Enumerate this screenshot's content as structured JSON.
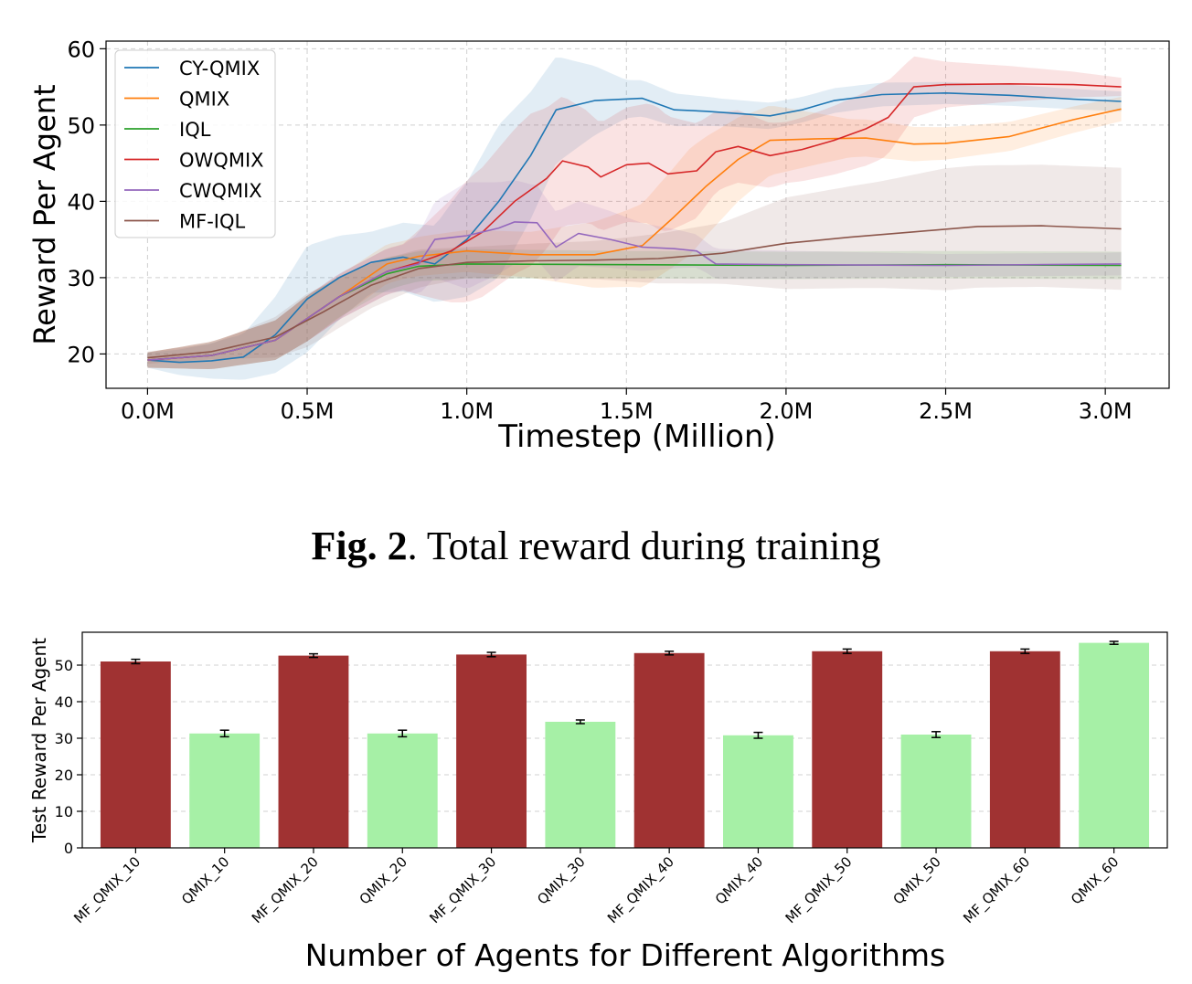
{
  "caption": {
    "label": "Fig. 2",
    "sep": ".",
    "text": " Total reward during training"
  },
  "chart_data": [
    {
      "type": "line",
      "xlabel": "Timestep (Million)",
      "ylabel": "Reward Per Agent",
      "xlim": [
        -0.13,
        3.2
      ],
      "ylim": [
        15.5,
        61
      ],
      "xticks": [
        0,
        0.5,
        1.0,
        1.5,
        2.0,
        2.5,
        3.0
      ],
      "xtick_labels": [
        "0.0M",
        "0.5M",
        "1.0M",
        "1.5M",
        "2.0M",
        "2.5M",
        "3.0M"
      ],
      "yticks": [
        20,
        30,
        40,
        50,
        60
      ],
      "ytick_labels": [
        "20",
        "30",
        "40",
        "50",
        "60"
      ],
      "grid": true,
      "legend_position": "top-left",
      "series": [
        {
          "name": "CY-QMIX",
          "color": "#1f77b4",
          "points": [
            [
              0,
              19.2
            ],
            [
              0.1,
              18.9
            ],
            [
              0.2,
              19.1
            ],
            [
              0.3,
              19.6
            ],
            [
              0.4,
              22.5
            ],
            [
              0.5,
              27.2
            ],
            [
              0.6,
              30.0
            ],
            [
              0.7,
              32.0
            ],
            [
              0.8,
              32.7
            ],
            [
              0.9,
              31.8
            ],
            [
              1.0,
              35.0
            ],
            [
              1.1,
              40.0
            ],
            [
              1.2,
              46.0
            ],
            [
              1.28,
              52.0
            ],
            [
              1.4,
              53.2
            ],
            [
              1.55,
              53.5
            ],
            [
              1.65,
              52.0
            ],
            [
              1.75,
              51.8
            ],
            [
              1.85,
              51.5
            ],
            [
              1.95,
              51.2
            ],
            [
              2.05,
              52.0
            ],
            [
              2.15,
              53.2
            ],
            [
              2.3,
              54.0
            ],
            [
              2.5,
              54.2
            ],
            [
              2.7,
              53.9
            ],
            [
              2.9,
              53.4
            ],
            [
              3.05,
              53.1
            ]
          ],
          "band": [
            [
              0,
              1.0
            ],
            [
              0.3,
              3.0
            ],
            [
              0.5,
              7.0
            ],
            [
              0.7,
              4.0
            ],
            [
              0.9,
              5.0
            ],
            [
              1.1,
              10.0
            ],
            [
              1.28,
              7.0
            ],
            [
              1.5,
              2.5
            ],
            [
              1.8,
              1.8
            ],
            [
              2.2,
              1.6
            ],
            [
              2.6,
              1.4
            ],
            [
              3.05,
              1.3
            ]
          ]
        },
        {
          "name": "QMIX",
          "color": "#ff7f0e",
          "points": [
            [
              0,
              19.2
            ],
            [
              0.2,
              19.8
            ],
            [
              0.4,
              21.8
            ],
            [
              0.6,
              27.5
            ],
            [
              0.75,
              31.8
            ],
            [
              0.85,
              32.8
            ],
            [
              1.0,
              33.5
            ],
            [
              1.2,
              33.0
            ],
            [
              1.4,
              33.0
            ],
            [
              1.55,
              34.2
            ],
            [
              1.65,
              38.0
            ],
            [
              1.75,
              42.0
            ],
            [
              1.85,
              45.5
            ],
            [
              1.95,
              48.0
            ],
            [
              2.1,
              48.2
            ],
            [
              2.25,
              48.3
            ],
            [
              2.4,
              47.5
            ],
            [
              2.5,
              47.6
            ],
            [
              2.7,
              48.5
            ],
            [
              2.9,
              50.7
            ],
            [
              3.05,
              52.1
            ]
          ],
          "band": [
            [
              0,
              1.0
            ],
            [
              0.5,
              3.0
            ],
            [
              0.8,
              2.5
            ],
            [
              1.2,
              3.0
            ],
            [
              1.5,
              5.0
            ],
            [
              1.7,
              7.0
            ],
            [
              1.9,
              5.0
            ],
            [
              2.2,
              2.5
            ],
            [
              2.6,
              2.0
            ],
            [
              3.05,
              1.6
            ]
          ]
        },
        {
          "name": "IQL",
          "color": "#2ca02c",
          "points": [
            [
              0,
              19.2
            ],
            [
              0.2,
              19.8
            ],
            [
              0.4,
              21.8
            ],
            [
              0.6,
              27.5
            ],
            [
              0.75,
              30.5
            ],
            [
              0.85,
              31.5
            ],
            [
              1.0,
              31.8
            ],
            [
              1.5,
              31.7
            ],
            [
              2.0,
              31.6
            ],
            [
              2.5,
              31.7
            ],
            [
              3.05,
              31.6
            ]
          ],
          "band": [
            [
              0,
              1.0
            ],
            [
              0.5,
              3.0
            ],
            [
              0.8,
              2.0
            ],
            [
              1.5,
              1.8
            ],
            [
              2.5,
              1.8
            ],
            [
              3.05,
              1.8
            ]
          ]
        },
        {
          "name": "OWQMIX",
          "color": "#d62728",
          "points": [
            [
              0,
              19.2
            ],
            [
              0.2,
              19.8
            ],
            [
              0.4,
              21.8
            ],
            [
              0.6,
              27.5
            ],
            [
              0.75,
              30.8
            ],
            [
              0.85,
              32.0
            ],
            [
              0.95,
              33.5
            ],
            [
              1.05,
              36.0
            ],
            [
              1.15,
              40.0
            ],
            [
              1.25,
              43.0
            ],
            [
              1.3,
              45.3
            ],
            [
              1.38,
              44.5
            ],
            [
              1.42,
              43.2
            ],
            [
              1.5,
              44.8
            ],
            [
              1.57,
              45.0
            ],
            [
              1.63,
              43.6
            ],
            [
              1.72,
              44.0
            ],
            [
              1.78,
              46.5
            ],
            [
              1.85,
              47.2
            ],
            [
              1.95,
              46.0
            ],
            [
              2.05,
              46.8
            ],
            [
              2.15,
              48.0
            ],
            [
              2.25,
              49.5
            ],
            [
              2.32,
              51.0
            ],
            [
              2.4,
              55.0
            ],
            [
              2.5,
              55.3
            ],
            [
              2.7,
              55.4
            ],
            [
              2.9,
              55.3
            ],
            [
              3.05,
              55.0
            ]
          ],
          "band": [
            [
              0,
              1.0
            ],
            [
              0.5,
              3.0
            ],
            [
              0.8,
              3.0
            ],
            [
              1.0,
              8.0
            ],
            [
              1.2,
              10.0
            ],
            [
              1.4,
              7.0
            ],
            [
              1.6,
              8.0
            ],
            [
              1.8,
              5.0
            ],
            [
              2.0,
              4.0
            ],
            [
              2.3,
              5.0
            ],
            [
              2.5,
              3.0
            ],
            [
              3.05,
              1.2
            ]
          ]
        },
        {
          "name": "CWQMIX",
          "color": "#9467bd",
          "points": [
            [
              0,
              19.2
            ],
            [
              0.2,
              19.8
            ],
            [
              0.4,
              21.8
            ],
            [
              0.6,
              27.5
            ],
            [
              0.75,
              30.8
            ],
            [
              0.85,
              31.8
            ],
            [
              0.9,
              35.0
            ],
            [
              1.0,
              35.5
            ],
            [
              1.1,
              36.5
            ],
            [
              1.15,
              37.3
            ],
            [
              1.22,
              37.2
            ],
            [
              1.28,
              34.0
            ],
            [
              1.35,
              35.8
            ],
            [
              1.45,
              35.0
            ],
            [
              1.55,
              34.0
            ],
            [
              1.65,
              33.8
            ],
            [
              1.72,
              33.5
            ],
            [
              1.78,
              31.8
            ],
            [
              2.0,
              31.7
            ],
            [
              2.5,
              31.6
            ],
            [
              3.05,
              31.8
            ]
          ],
          "band": [
            [
              0,
              1.0
            ],
            [
              0.5,
              3.0
            ],
            [
              0.8,
              3.0
            ],
            [
              1.0,
              7.0
            ],
            [
              1.2,
              5.0
            ],
            [
              1.4,
              4.0
            ],
            [
              1.75,
              2.0
            ],
            [
              2.5,
              1.5
            ],
            [
              3.05,
              1.5
            ]
          ]
        },
        {
          "name": "MF-IQL",
          "color": "#8c564b",
          "points": [
            [
              0,
              19.5
            ],
            [
              0.2,
              20.3
            ],
            [
              0.4,
              22.2
            ],
            [
              0.55,
              25.5
            ],
            [
              0.7,
              29.0
            ],
            [
              0.85,
              31.2
            ],
            [
              1.0,
              32.0
            ],
            [
              1.2,
              32.2
            ],
            [
              1.4,
              32.3
            ],
            [
              1.6,
              32.5
            ],
            [
              1.8,
              33.2
            ],
            [
              2.0,
              34.5
            ],
            [
              2.2,
              35.3
            ],
            [
              2.4,
              36.0
            ],
            [
              2.6,
              36.7
            ],
            [
              2.8,
              36.8
            ],
            [
              3.05,
              36.4
            ]
          ],
          "band": [
            [
              0,
              0.8
            ],
            [
              0.2,
              1.0
            ],
            [
              0.5,
              3.5
            ],
            [
              0.7,
              3.0
            ],
            [
              1.0,
              2.0
            ],
            [
              1.4,
              2.5
            ],
            [
              1.8,
              4.0
            ],
            [
              2.0,
              6.0
            ],
            [
              2.3,
              7.0
            ],
            [
              2.5,
              8.0
            ],
            [
              3.05,
              8.0
            ]
          ]
        }
      ]
    },
    {
      "type": "bar",
      "xlabel": "Number of Agents for Different Algorithms",
      "ylabel": "Test Reward Per Agent",
      "ylim": [
        0,
        59
      ],
      "yticks": [
        0,
        10,
        20,
        30,
        40,
        50
      ],
      "ytick_labels": [
        "0",
        "10",
        "20",
        "30",
        "40",
        "50"
      ],
      "grid": true,
      "categories": [
        "MF_QMIX_10",
        "QMIX_10",
        "MF_QMIX_20",
        "QMIX_20",
        "MF_QMIX_30",
        "QMIX_30",
        "MF_QMIX_40",
        "QMIX_40",
        "MF_QMIX_50",
        "QMIX_50",
        "MF_QMIX_60",
        "QMIX_60"
      ],
      "values": [
        51.0,
        31.3,
        52.6,
        31.3,
        52.9,
        34.5,
        53.3,
        30.8,
        53.8,
        31.0,
        53.8,
        56.1
      ],
      "errors": [
        0.6,
        0.9,
        0.5,
        0.9,
        0.6,
        0.5,
        0.5,
        0.8,
        0.6,
        0.8,
        0.6,
        0.4
      ],
      "colors": [
        "#a03232",
        "#a6f0a6",
        "#a03232",
        "#a6f0a6",
        "#a03232",
        "#a6f0a6",
        "#a03232",
        "#a6f0a6",
        "#a03232",
        "#a6f0a6",
        "#a03232",
        "#a6f0a6"
      ]
    }
  ]
}
